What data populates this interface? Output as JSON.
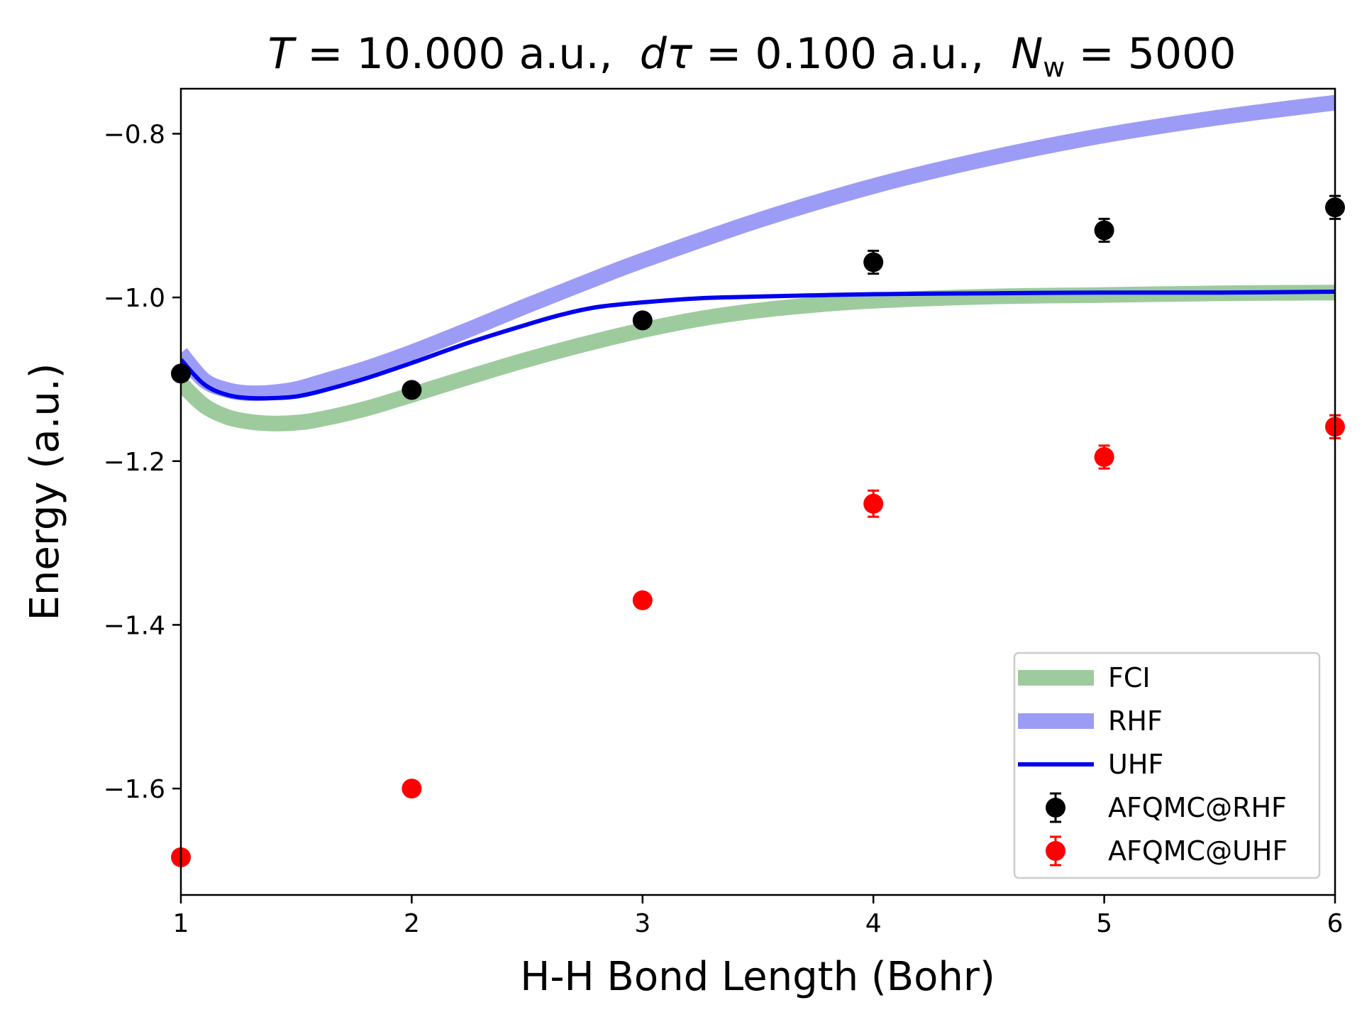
{
  "chart_data": {
    "type": "line",
    "title": {
      "T_symbol": "T",
      "T_text": " = 10.000 a.u.,  ",
      "dtau_symbol": "dτ",
      "dtau_text": " = 0.100 a.u.,  ",
      "N_symbol": "N",
      "N_subscript": "w",
      "N_text": " = 5000"
    },
    "xlabel": "H-H Bond Length (Bohr)",
    "ylabel": "Energy (a.u.)",
    "xlim": [
      1,
      6
    ],
    "ylim": [
      -1.73,
      -0.745
    ],
    "xticks": [
      1,
      2,
      3,
      4,
      5,
      6
    ],
    "xtick_labels": [
      "1",
      "2",
      "3",
      "4",
      "5",
      "6"
    ],
    "yticks": [
      -1.6,
      -1.4,
      -1.2,
      -1.0,
      -0.8
    ],
    "ytick_labels": [
      "−1.6",
      "−1.4",
      "−1.2",
      "−1.0",
      "−0.8"
    ],
    "grid": false,
    "legend_position": "lower-right",
    "series": [
      {
        "name": "FCI",
        "kind": "line",
        "color": "#9dcb9d",
        "x": [
          1.0,
          1.1,
          1.2,
          1.3,
          1.4,
          1.5,
          1.6,
          1.8,
          2.0,
          2.25,
          2.5,
          2.75,
          3.0,
          3.25,
          3.5,
          3.75,
          4.0,
          4.5,
          5.0,
          5.5,
          6.0
        ],
        "y": [
          -1.105,
          -1.132,
          -1.146,
          -1.152,
          -1.154,
          -1.153,
          -1.149,
          -1.136,
          -1.119,
          -1.097,
          -1.076,
          -1.057,
          -1.04,
          -1.026,
          -1.016,
          -1.009,
          -1.004,
          -0.999,
          -0.997,
          -0.995,
          -0.994
        ]
      },
      {
        "name": "RHF",
        "kind": "line",
        "color": "#9c9cf6",
        "x": [
          1.0,
          1.1,
          1.2,
          1.3,
          1.4,
          1.5,
          1.6,
          1.8,
          2.0,
          2.25,
          2.5,
          2.75,
          3.0,
          3.5,
          4.0,
          4.5,
          5.0,
          5.5,
          6.0
        ],
        "y": [
          -1.068,
          -1.101,
          -1.113,
          -1.117,
          -1.116,
          -1.112,
          -1.104,
          -1.087,
          -1.067,
          -1.039,
          -1.01,
          -0.982,
          -0.955,
          -0.906,
          -0.864,
          -0.83,
          -0.802,
          -0.78,
          -0.762
        ]
      },
      {
        "name": "UHF",
        "kind": "line",
        "color": "#0000ee",
        "x": [
          1.0,
          1.1,
          1.2,
          1.3,
          1.4,
          1.5,
          1.6,
          1.8,
          2.0,
          2.25,
          2.5,
          2.65,
          2.8,
          3.0,
          3.25,
          3.5,
          4.0,
          4.5,
          5.0,
          5.5,
          6.0
        ],
        "y": [
          -1.076,
          -1.106,
          -1.119,
          -1.123,
          -1.123,
          -1.121,
          -1.115,
          -1.099,
          -1.08,
          -1.055,
          -1.033,
          -1.021,
          -1.012,
          -1.006,
          -1.001,
          -0.999,
          -0.996,
          -0.995,
          -0.994,
          -0.994,
          -0.993
        ]
      },
      {
        "name": "AFQMC@RHF",
        "kind": "errorbar",
        "color": "#000000",
        "x": [
          1,
          2,
          3,
          4,
          5,
          6
        ],
        "y": [
          -1.093,
          -1.113,
          -1.028,
          -0.957,
          -0.918,
          -0.89
        ],
        "err": [
          0.004,
          0.006,
          0.006,
          0.014,
          0.014,
          0.014
        ]
      },
      {
        "name": "AFQMC@UHF",
        "kind": "errorbar",
        "color": "#ff0000",
        "x": [
          1,
          2,
          3,
          4,
          5,
          6
        ],
        "y": [
          -1.684,
          -1.6,
          -1.37,
          -1.252,
          -1.195,
          -1.158
        ],
        "err": [
          0.002,
          0.002,
          0.003,
          0.016,
          0.014,
          0.014
        ]
      }
    ]
  }
}
